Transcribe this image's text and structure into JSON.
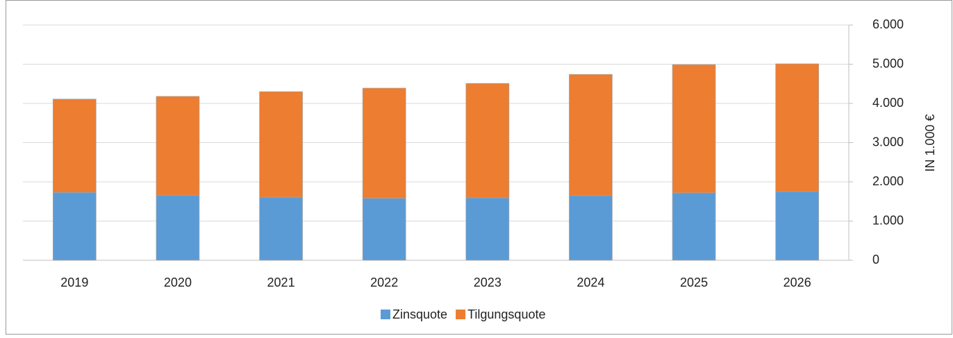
{
  "chart_data": {
    "type": "stacked_bar",
    "categories": [
      "2019",
      "2020",
      "2021",
      "2022",
      "2023",
      "2024",
      "2025",
      "2026"
    ],
    "series": [
      {
        "name": "Zinsquote",
        "color": "#5b9bd5",
        "values": [
          1730,
          1660,
          1610,
          1580,
          1590,
          1650,
          1720,
          1750
        ]
      },
      {
        "name": "Tilgungsquote",
        "color": "#ed7d31",
        "values": [
          2380,
          2520,
          2690,
          2810,
          2920,
          3090,
          3270,
          3260
        ]
      }
    ],
    "y_axis_label": "IN 1.000 €",
    "ylim": [
      0,
      6000
    ],
    "yticks": [
      0,
      {
        "value": 1000,
        "label": "1.000"
      },
      {
        "value": 2000,
        "label": "2.000"
      },
      {
        "value": 3000,
        "label": "3.000"
      },
      {
        "value": 4000,
        "label": "4.000"
      },
      {
        "value": 5000,
        "label": "5.000"
      },
      {
        "value": 6000,
        "label": "6.000"
      }
    ],
    "grid": true,
    "legend": "bottom"
  }
}
